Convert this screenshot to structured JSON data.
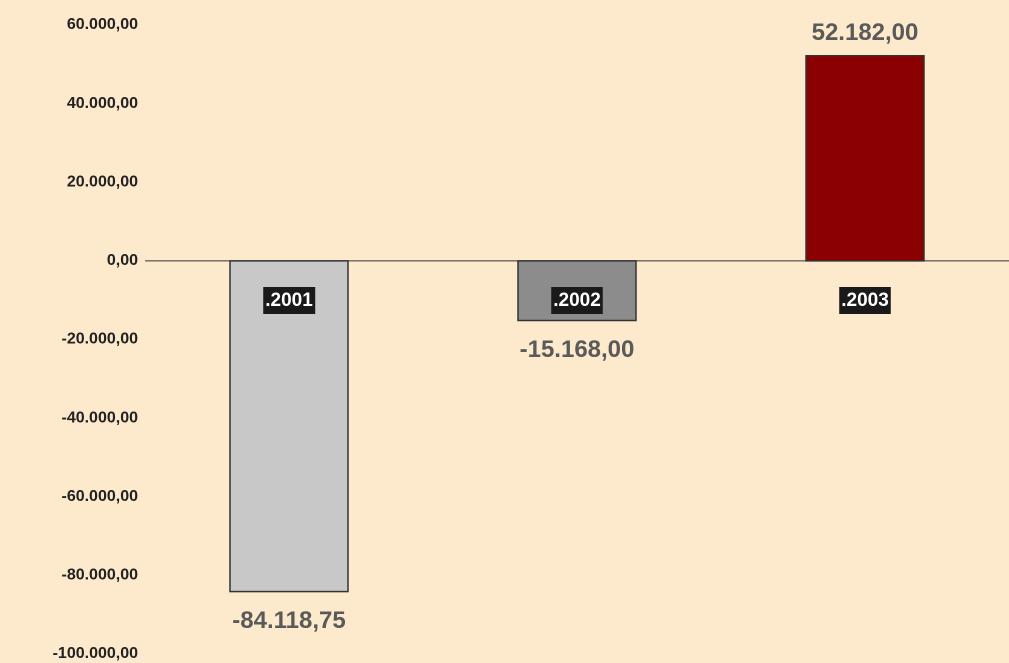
{
  "chart_data": {
    "type": "bar",
    "categories": [
      ".2001",
      ".2002",
      ".2003"
    ],
    "values": [
      -84118.75,
      -15168,
      52182
    ],
    "value_labels": [
      "-84.118,75",
      "-15.168,00",
      "52.182,00"
    ],
    "colors": [
      "#c8c8c8",
      "#8c8c8c",
      "#8b0000"
    ],
    "ylim": [
      -100000,
      60000
    ],
    "yticks": [
      {
        "value": -100000,
        "label": "-100.000,00"
      },
      {
        "value": -80000,
        "label": "-80.000,00"
      },
      {
        "value": -60000,
        "label": "-60.000,00"
      },
      {
        "value": -40000,
        "label": "-40.000,00"
      },
      {
        "value": -20000,
        "label": "-20.000,00"
      },
      {
        "value": 0,
        "label": "0,00"
      },
      {
        "value": 20000,
        "label": "20.000,00"
      },
      {
        "value": 40000,
        "label": "40.000,00"
      },
      {
        "value": 60000,
        "label": "60.000,00"
      }
    ],
    "grid": false
  }
}
